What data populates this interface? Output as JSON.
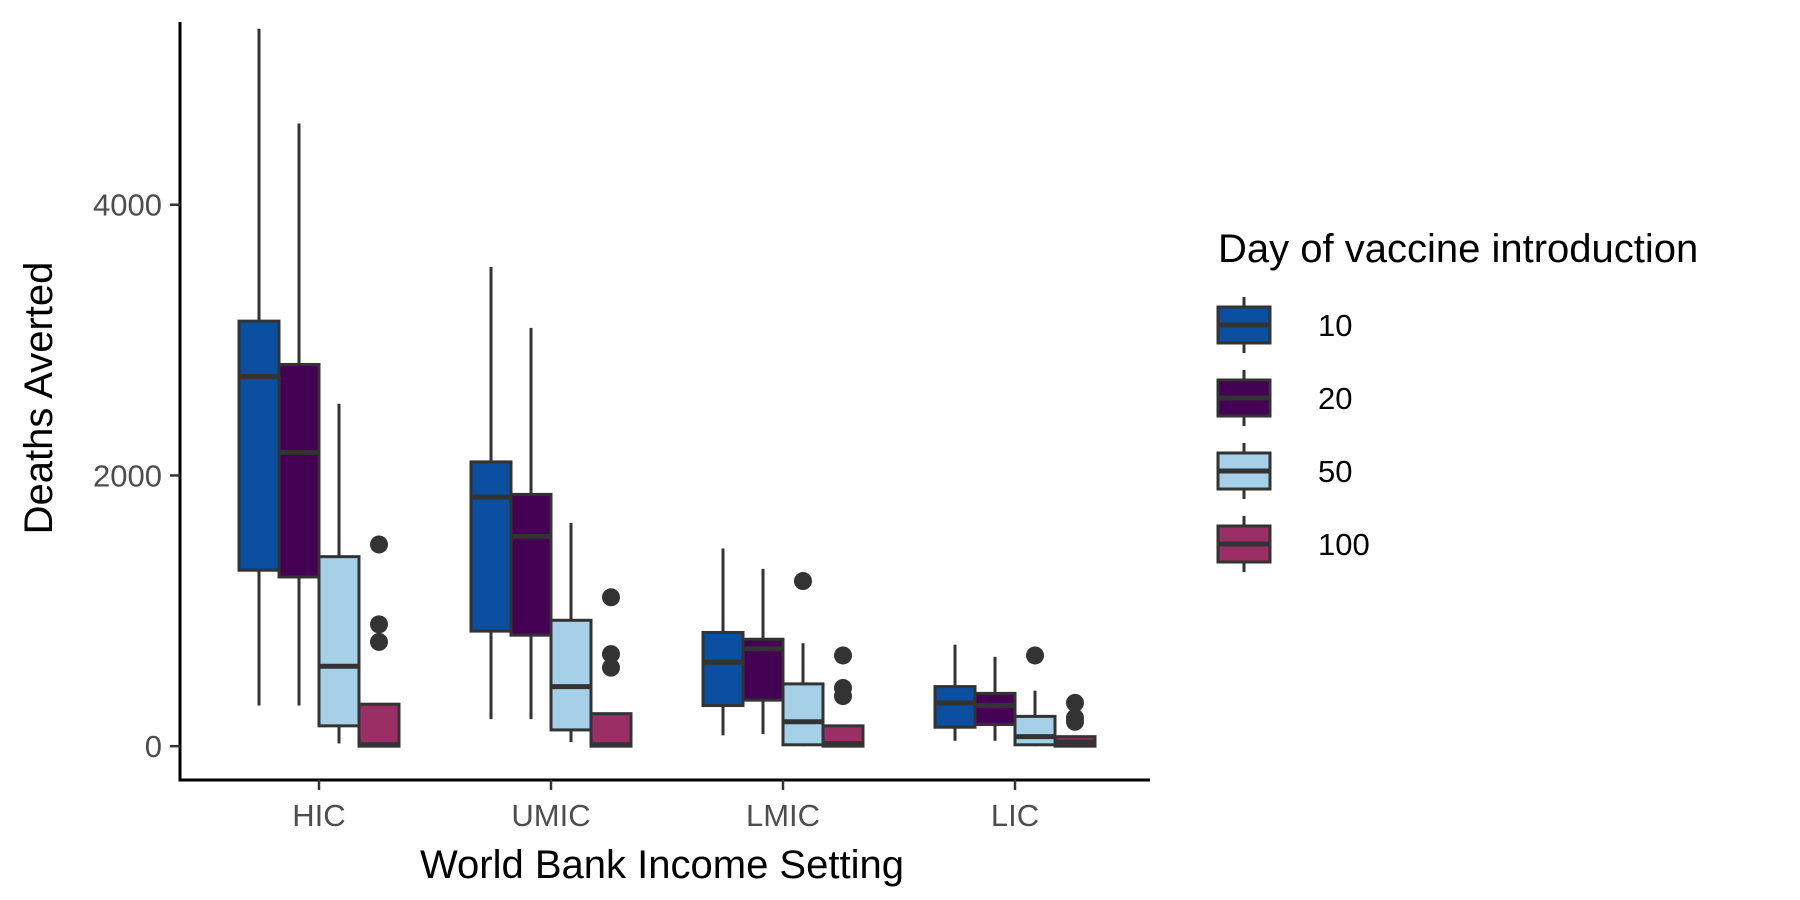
{
  "chart_data": {
    "type": "box",
    "xlabel": "World Bank Income Setting",
    "ylabel": "Deaths Averted",
    "categories": [
      "HIC",
      "UMIC",
      "LMIC",
      "LIC"
    ],
    "ylim": [
      -250,
      5350
    ],
    "yticks": [
      0,
      2000,
      4000
    ],
    "grid": false,
    "legend": {
      "title": "Day of vaccine introduction",
      "position": "right"
    },
    "series": [
      {
        "name": "10",
        "color": "#0a4fa0",
        "boxes": [
          {
            "category": "HIC",
            "min": 300,
            "q1": 1300,
            "median": 2730,
            "q3": 3140,
            "max": 5300,
            "outliers": []
          },
          {
            "category": "UMIC",
            "min": 200,
            "q1": 850,
            "median": 1840,
            "q3": 2100,
            "max": 3540,
            "outliers": []
          },
          {
            "category": "LMIC",
            "min": 80,
            "q1": 300,
            "median": 620,
            "q3": 840,
            "max": 1460,
            "outliers": []
          },
          {
            "category": "LIC",
            "min": 40,
            "q1": 140,
            "median": 320,
            "q3": 440,
            "max": 750,
            "outliers": []
          }
        ]
      },
      {
        "name": "20",
        "color": "#440154",
        "boxes": [
          {
            "category": "HIC",
            "min": 300,
            "q1": 1250,
            "median": 2170,
            "q3": 2820,
            "max": 4600,
            "outliers": []
          },
          {
            "category": "UMIC",
            "min": 200,
            "q1": 820,
            "median": 1550,
            "q3": 1860,
            "max": 3090,
            "outliers": []
          },
          {
            "category": "LMIC",
            "min": 90,
            "q1": 340,
            "median": 720,
            "q3": 790,
            "max": 1310,
            "outliers": []
          },
          {
            "category": "LIC",
            "min": 40,
            "q1": 160,
            "median": 300,
            "q3": 390,
            "max": 660,
            "outliers": []
          }
        ]
      },
      {
        "name": "50",
        "color": "#a6d0e8",
        "boxes": [
          {
            "category": "HIC",
            "min": 20,
            "q1": 150,
            "median": 590,
            "q3": 1400,
            "max": 2530,
            "outliers": []
          },
          {
            "category": "UMIC",
            "min": 30,
            "q1": 120,
            "median": 440,
            "q3": 930,
            "max": 1650,
            "outliers": []
          },
          {
            "category": "LMIC",
            "min": 0,
            "q1": 10,
            "median": 180,
            "q3": 460,
            "max": 760,
            "outliers": [
              1220
            ]
          },
          {
            "category": "LIC",
            "min": 0,
            "q1": 10,
            "median": 70,
            "q3": 220,
            "max": 410,
            "outliers": [
              670
            ]
          }
        ]
      },
      {
        "name": "100",
        "color": "#9a2f66",
        "boxes": [
          {
            "category": "HIC",
            "min": 0,
            "q1": 0,
            "median": 10,
            "q3": 310,
            "max": 310,
            "outliers": [
              770,
              900,
              1490
            ]
          },
          {
            "category": "UMIC",
            "min": 0,
            "q1": 0,
            "median": 10,
            "q3": 240,
            "max": 240,
            "outliers": [
              580,
              680,
              1100
            ]
          },
          {
            "category": "LMIC",
            "min": 0,
            "q1": 0,
            "median": 20,
            "q3": 150,
            "max": 150,
            "outliers": [
              370,
              430,
              670
            ]
          },
          {
            "category": "LIC",
            "min": 0,
            "q1": 0,
            "median": 30,
            "q3": 70,
            "max": 70,
            "outliers": [
              180,
              210,
              320
            ]
          }
        ]
      }
    ]
  }
}
